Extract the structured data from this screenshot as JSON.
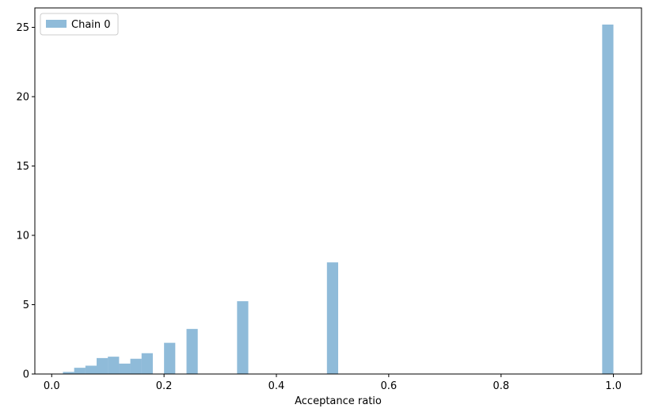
{
  "chart_data": {
    "type": "bar",
    "title": "",
    "xlabel": "Acceptance ratio",
    "ylabel": "",
    "xlim": [
      -0.03,
      1.05
    ],
    "ylim": [
      0,
      26.4
    ],
    "bin_width": 0.02,
    "xticks": [
      0.0,
      0.2,
      0.4,
      0.6,
      0.8,
      1.0
    ],
    "xtick_labels": [
      "0.0",
      "0.2",
      "0.4",
      "0.6",
      "0.8",
      "1.0"
    ],
    "yticks": [
      0,
      5,
      10,
      15,
      20,
      25
    ],
    "ytick_labels": [
      "0",
      "5",
      "10",
      "15",
      "20",
      "25"
    ],
    "grid": false,
    "legend_position": "top-left",
    "colors": {
      "bar": "#1f77b4",
      "bar_opacity": 0.5
    },
    "series": [
      {
        "name": "Chain 0",
        "bins": [
          {
            "left": 0.02,
            "value": 0.15
          },
          {
            "left": 0.04,
            "value": 0.45
          },
          {
            "left": 0.06,
            "value": 0.6
          },
          {
            "left": 0.08,
            "value": 1.15
          },
          {
            "left": 0.1,
            "value": 1.25
          },
          {
            "left": 0.12,
            "value": 0.75
          },
          {
            "left": 0.14,
            "value": 1.1
          },
          {
            "left": 0.16,
            "value": 1.5
          },
          {
            "left": 0.2,
            "value": 2.25
          },
          {
            "left": 0.24,
            "value": 3.25
          },
          {
            "left": 0.33,
            "value": 5.25
          },
          {
            "left": 0.49,
            "value": 8.05
          },
          {
            "left": 0.98,
            "value": 25.2
          }
        ]
      }
    ]
  }
}
